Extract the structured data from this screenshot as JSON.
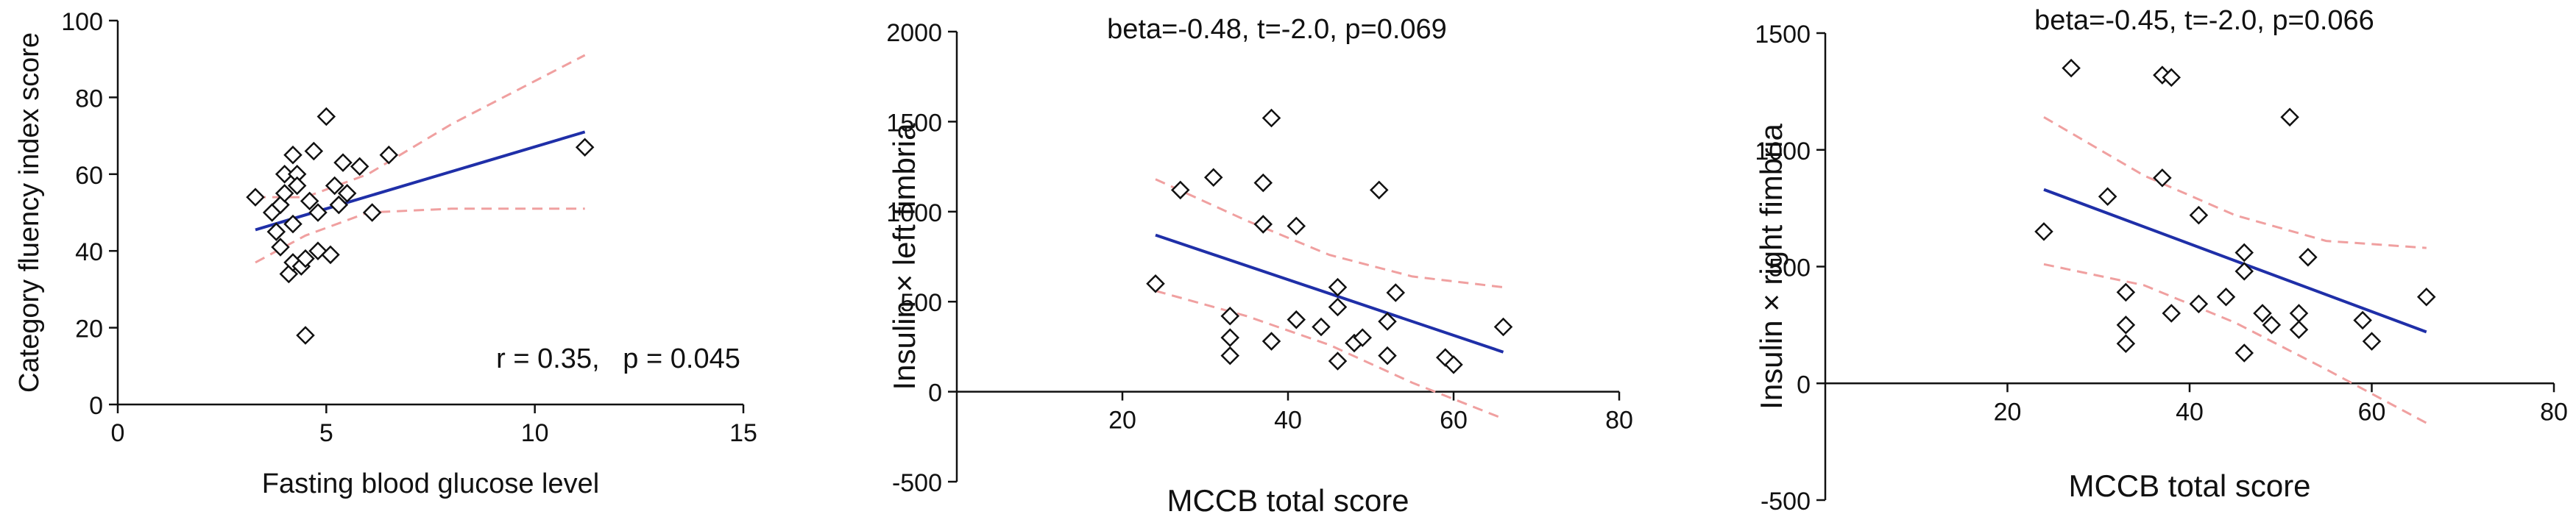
{
  "chart_data": [
    {
      "type": "scatter",
      "title": "",
      "xlabel": "Fasting blood glucose level",
      "ylabel": "Category fluency index score",
      "annotation": "r = 0.35,   p = 0.045",
      "xlim": [
        0,
        15
      ],
      "ylim": [
        0,
        100
      ],
      "xticks": [
        0,
        5,
        10,
        15
      ],
      "yticks": [
        0,
        20,
        40,
        60,
        80,
        100
      ],
      "grid": false,
      "points": [
        {
          "x": 3.3,
          "y": 54
        },
        {
          "x": 3.7,
          "y": 50
        },
        {
          "x": 3.8,
          "y": 45
        },
        {
          "x": 3.9,
          "y": 41
        },
        {
          "x": 3.9,
          "y": 52
        },
        {
          "x": 4.0,
          "y": 55
        },
        {
          "x": 4.0,
          "y": 60
        },
        {
          "x": 4.1,
          "y": 34
        },
        {
          "x": 4.2,
          "y": 37
        },
        {
          "x": 4.2,
          "y": 47
        },
        {
          "x": 4.2,
          "y": 65
        },
        {
          "x": 4.3,
          "y": 60
        },
        {
          "x": 4.3,
          "y": 57
        },
        {
          "x": 4.4,
          "y": 36
        },
        {
          "x": 4.5,
          "y": 38
        },
        {
          "x": 4.5,
          "y": 18
        },
        {
          "x": 4.6,
          "y": 53
        },
        {
          "x": 4.7,
          "y": 66
        },
        {
          "x": 4.8,
          "y": 40
        },
        {
          "x": 4.8,
          "y": 50
        },
        {
          "x": 5.0,
          "y": 75
        },
        {
          "x": 5.1,
          "y": 39
        },
        {
          "x": 5.2,
          "y": 57
        },
        {
          "x": 5.3,
          "y": 52
        },
        {
          "x": 5.4,
          "y": 63
        },
        {
          "x": 5.5,
          "y": 55
        },
        {
          "x": 5.8,
          "y": 62
        },
        {
          "x": 6.1,
          "y": 50
        },
        {
          "x": 6.5,
          "y": 65
        },
        {
          "x": 11.2,
          "y": 67
        }
      ],
      "fit": {
        "x": [
          3.3,
          11.2
        ],
        "y": [
          45.5,
          71
        ]
      },
      "ci_upper": {
        "x": [
          3.3,
          4.5,
          6.0,
          8.0,
          11.2
        ],
        "y": [
          54,
          54,
          60,
          73,
          91
        ]
      },
      "ci_lower": {
        "x": [
          3.3,
          4.5,
          6.0,
          8.0,
          11.2
        ],
        "y": [
          37,
          44,
          50,
          51,
          51
        ]
      }
    },
    {
      "type": "scatter",
      "title": "beta=-0.48, t=-2.0, p=0.069",
      "xlabel": "MCCB total score",
      "ylabel": "Insulin ×  left fimbria",
      "xlim": [
        0,
        80
      ],
      "ylim": [
        -500,
        2000
      ],
      "xticks": [
        20,
        40,
        60,
        80
      ],
      "yticks": [
        -500,
        0,
        500,
        1000,
        1500,
        2000
      ],
      "grid": false,
      "points": [
        {
          "x": 24,
          "y": 600
        },
        {
          "x": 27,
          "y": 1120
        },
        {
          "x": 31,
          "y": 1190
        },
        {
          "x": 33,
          "y": 420
        },
        {
          "x": 33,
          "y": 300
        },
        {
          "x": 33,
          "y": 200
        },
        {
          "x": 37,
          "y": 1160
        },
        {
          "x": 37,
          "y": 930
        },
        {
          "x": 38,
          "y": 1520
        },
        {
          "x": 38,
          "y": 280
        },
        {
          "x": 41,
          "y": 400
        },
        {
          "x": 41,
          "y": 920
        },
        {
          "x": 44,
          "y": 360
        },
        {
          "x": 46,
          "y": 580
        },
        {
          "x": 46,
          "y": 470
        },
        {
          "x": 46,
          "y": 170
        },
        {
          "x": 48,
          "y": 270
        },
        {
          "x": 49,
          "y": 300
        },
        {
          "x": 51,
          "y": 1120
        },
        {
          "x": 52,
          "y": 390
        },
        {
          "x": 52,
          "y": 200
        },
        {
          "x": 53,
          "y": 550
        },
        {
          "x": 59,
          "y": 190
        },
        {
          "x": 60,
          "y": 150
        },
        {
          "x": 66,
          "y": 360
        }
      ],
      "fit": {
        "x": [
          24,
          66
        ],
        "y": [
          870,
          220
        ]
      },
      "ci_upper": {
        "x": [
          24,
          35,
          45,
          55,
          66
        ],
        "y": [
          1180,
          950,
          760,
          640,
          580
        ]
      },
      "ci_lower": {
        "x": [
          24,
          35,
          45,
          55,
          66
        ],
        "y": [
          560,
          420,
          260,
          50,
          -150
        ]
      }
    },
    {
      "type": "scatter",
      "title": "beta=-0.45, t=-2.0, p=0.066",
      "xlabel": "MCCB total score",
      "ylabel": "Insulin ×  right fimbria",
      "xlim": [
        0,
        80
      ],
      "ylim": [
        -500,
        1500
      ],
      "xticks": [
        20,
        40,
        60,
        80
      ],
      "yticks": [
        -500,
        0,
        500,
        1000,
        1500
      ],
      "grid": false,
      "points": [
        {
          "x": 24,
          "y": 650
        },
        {
          "x": 27,
          "y": 1350
        },
        {
          "x": 31,
          "y": 800
        },
        {
          "x": 33,
          "y": 390
        },
        {
          "x": 33,
          "y": 250
        },
        {
          "x": 33,
          "y": 170
        },
        {
          "x": 37,
          "y": 1320
        },
        {
          "x": 38,
          "y": 1310
        },
        {
          "x": 37,
          "y": 880
        },
        {
          "x": 38,
          "y": 300
        },
        {
          "x": 41,
          "y": 720
        },
        {
          "x": 41,
          "y": 340
        },
        {
          "x": 44,
          "y": 370
        },
        {
          "x": 46,
          "y": 560
        },
        {
          "x": 46,
          "y": 480
        },
        {
          "x": 46,
          "y": 130
        },
        {
          "x": 48,
          "y": 300
        },
        {
          "x": 49,
          "y": 250
        },
        {
          "x": 51,
          "y": 1140
        },
        {
          "x": 52,
          "y": 300
        },
        {
          "x": 52,
          "y": 230
        },
        {
          "x": 53,
          "y": 540
        },
        {
          "x": 59,
          "y": 270
        },
        {
          "x": 60,
          "y": 180
        },
        {
          "x": 66,
          "y": 370
        }
      ],
      "fit": {
        "x": [
          24,
          66
        ],
        "y": [
          830,
          220
        ]
      },
      "ci_upper": {
        "x": [
          24,
          35,
          45,
          55,
          66
        ],
        "y": [
          1140,
          890,
          720,
          610,
          580
        ]
      },
      "ci_lower": {
        "x": [
          24,
          35,
          45,
          55,
          66
        ],
        "y": [
          510,
          420,
          260,
          60,
          -170
        ]
      }
    }
  ],
  "colors": {
    "fit_line": "#1f2fa8",
    "ci_line": "#f0a0a0",
    "marker": "#111111",
    "axis": "#111111"
  }
}
